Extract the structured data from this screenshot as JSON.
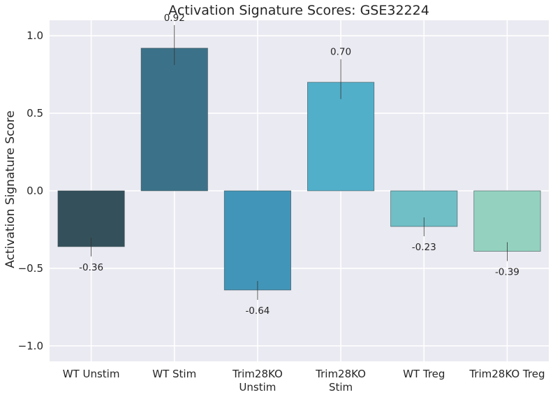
{
  "chart_data": {
    "type": "bar",
    "title": "Activation Signature Scores: GSE32224",
    "xlabel": "",
    "ylabel": "Activation Signature Score",
    "ylim": [
      -1.1,
      1.1
    ],
    "yticks": [
      -1.0,
      -0.5,
      0.0,
      0.5,
      1.0
    ],
    "ytick_labels": [
      "−1.0",
      "−0.5",
      "0.0",
      "0.5",
      "1.0"
    ],
    "grid": true,
    "categories": [
      [
        "WT Unstim"
      ],
      [
        "WT Stim"
      ],
      [
        "Trim28KO",
        "Unstim"
      ],
      [
        "Trim28KO",
        "Stim"
      ],
      [
        "WT Treg"
      ],
      [
        "Trim28KO Treg"
      ]
    ],
    "values": [
      -0.36,
      0.92,
      -0.64,
      0.7,
      -0.23,
      -0.39
    ],
    "value_labels": [
      "-0.36",
      "0.92",
      "-0.64",
      "0.70",
      "-0.23",
      "-0.39"
    ],
    "colors": [
      "#34515b",
      "#3b7289",
      "#4195b8",
      "#52afca",
      "#70bfc6",
      "#94d2bf"
    ],
    "plot_background": "#eaeaf2",
    "grid_color": "#ffffff"
  }
}
